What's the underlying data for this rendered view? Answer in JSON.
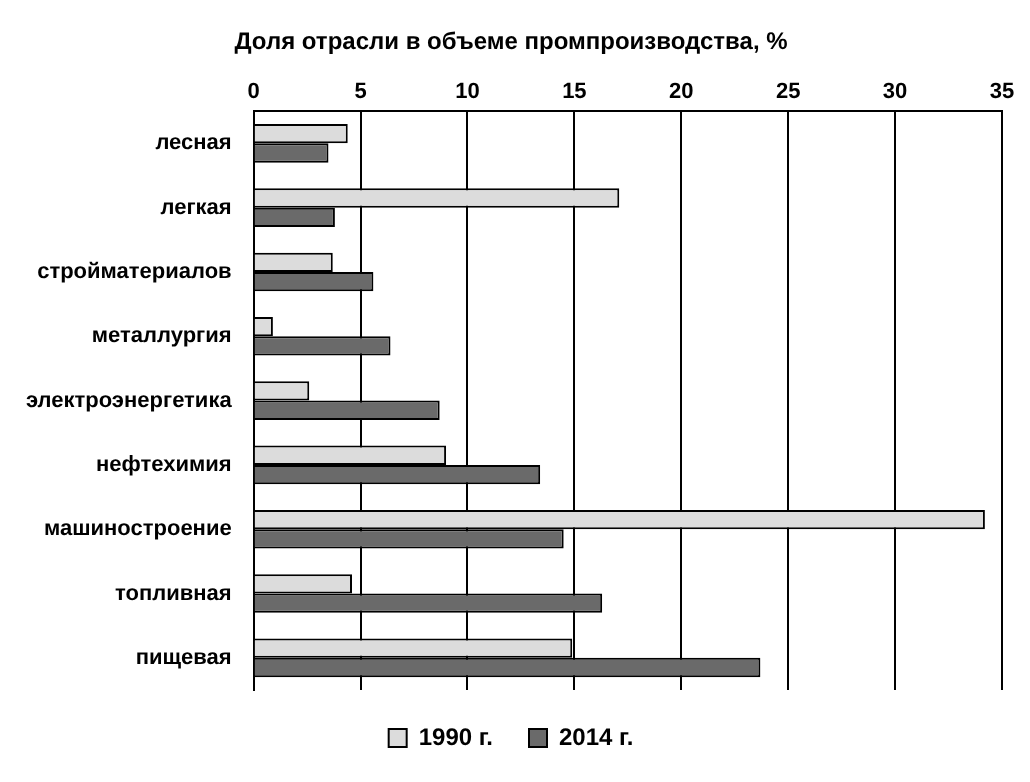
{
  "chart_data": {
    "type": "bar",
    "orientation": "horizontal",
    "title": "Доля отрасли в объеме промпроизводства, %",
    "categories": [
      "лесная",
      "легкая",
      "стройматериалов",
      "металлургия",
      "электроэнергетика",
      "нефтехимия",
      "машиностроение",
      "топливная",
      "пищевая"
    ],
    "series": [
      {
        "name": "1990 г.",
        "color": "#dcdcdc",
        "values": [
          4.4,
          17.1,
          3.7,
          0.9,
          2.6,
          9.0,
          34.2,
          4.6,
          14.9
        ]
      },
      {
        "name": "2014 г.",
        "color": "#6a6a6a",
        "values": [
          3.5,
          3.8,
          5.6,
          6.4,
          8.7,
          13.4,
          14.5,
          16.3,
          23.7
        ]
      }
    ],
    "xlim": [
      0,
      35
    ],
    "xticks": [
      0,
      5,
      10,
      15,
      20,
      25,
      30,
      35
    ],
    "grid": "x",
    "legend": "bottom"
  }
}
